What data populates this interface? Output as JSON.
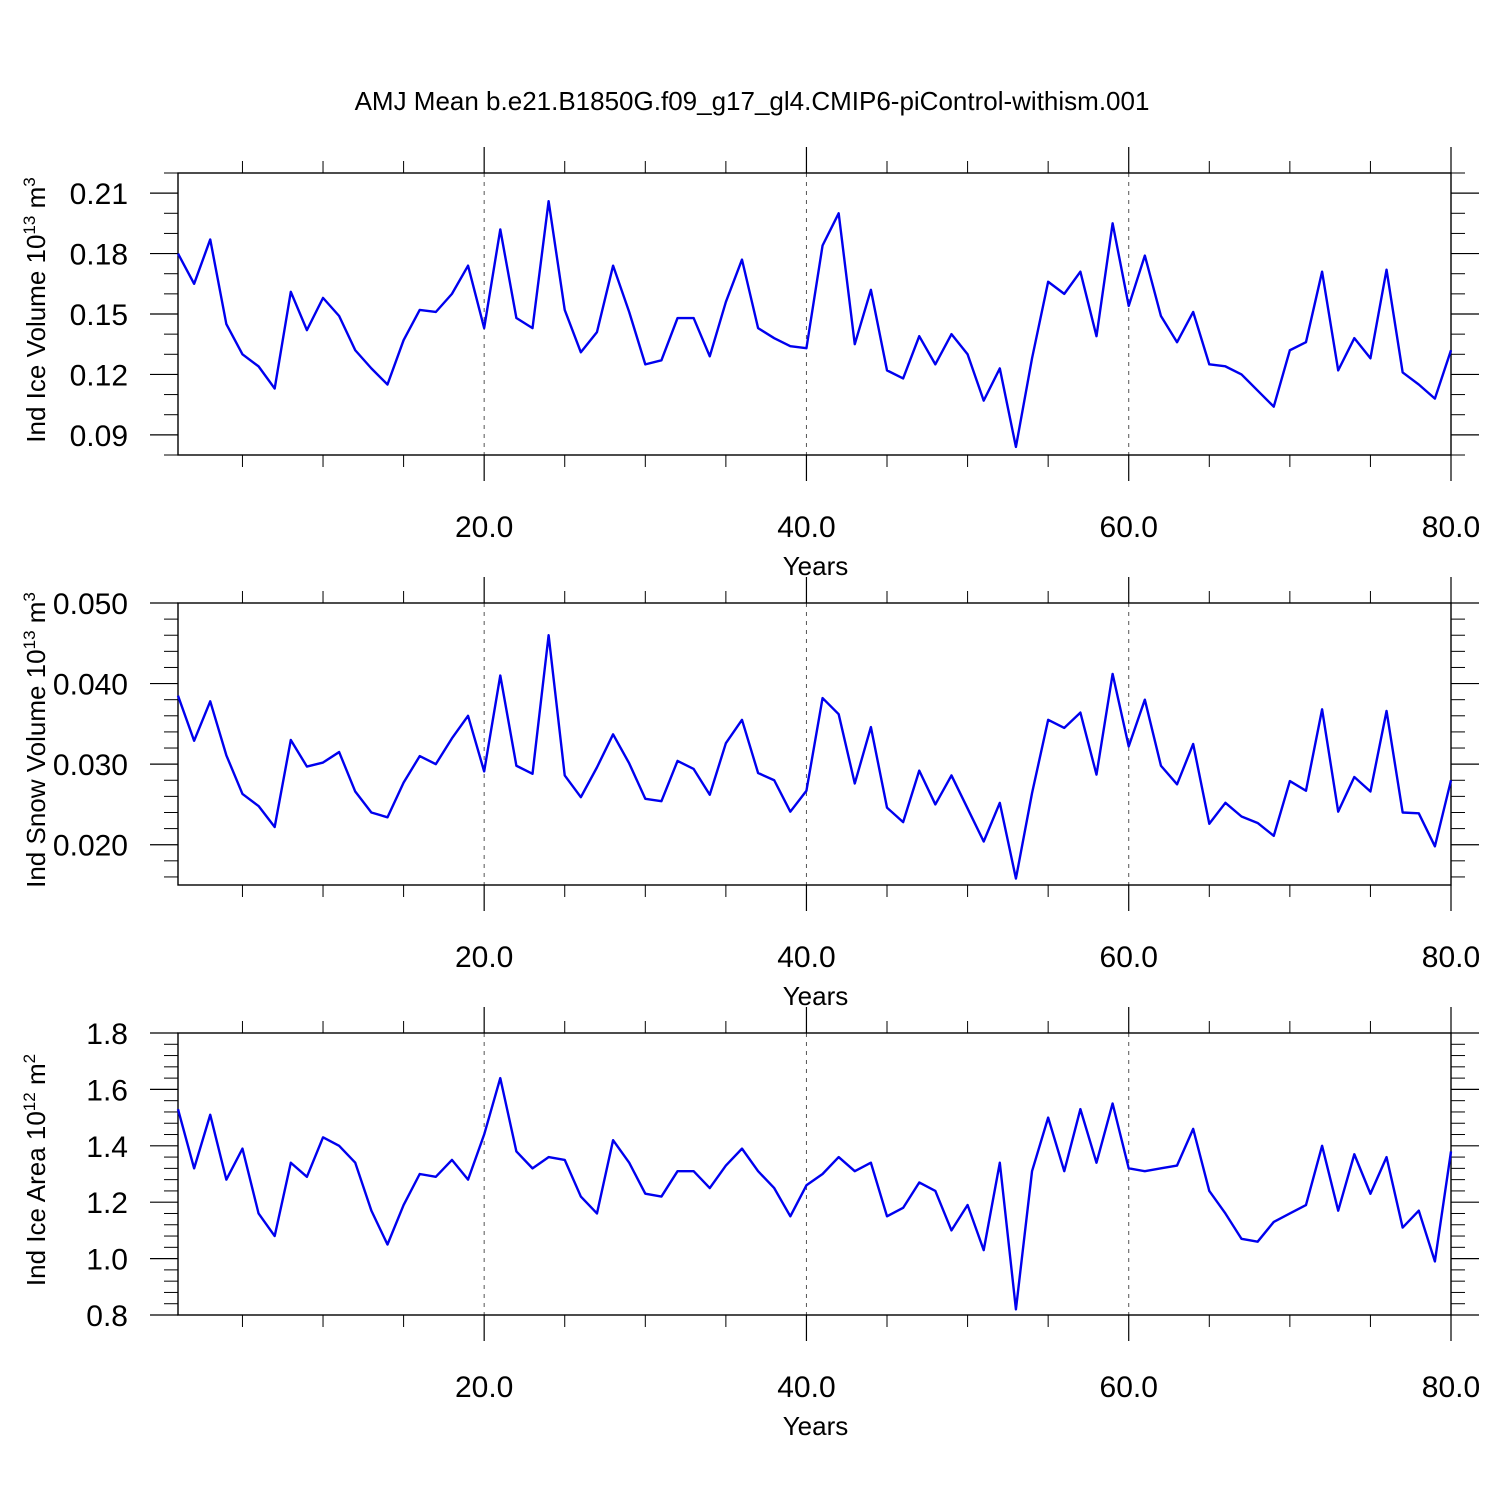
{
  "title": "AMJ Mean b.e21.B1850G.f09_g17_gl4.CMIP6-piControl-withism.001",
  "colors": {
    "series": "#0000ee",
    "grid": "#555555",
    "axis": "#000000"
  },
  "chart_data": [
    {
      "type": "line",
      "ylabel": "Ind Ice Volume 10",
      "ylabel_exp": "13",
      "ylabel_unit": " m",
      "ylabel_unit_exp": "3",
      "xlabel": "Years",
      "xlim": [
        1,
        80
      ],
      "ylim": [
        0.08,
        0.22
      ],
      "y_ticks": [
        0.09,
        0.12,
        0.15,
        0.18,
        0.21
      ],
      "y_tick_labels": [
        "0.09",
        "0.12",
        "0.15",
        "0.18",
        "0.21"
      ],
      "y_minor_step": 0.01,
      "x_ticks": [
        20,
        40,
        60,
        80
      ],
      "x_tick_labels": [
        "20.0",
        "40.0",
        "60.0",
        "80.0"
      ],
      "x_minor_step": 5,
      "grid_x": [
        20,
        40,
        60
      ],
      "x": [
        1,
        2,
        3,
        4,
        5,
        6,
        7,
        8,
        9,
        10,
        11,
        12,
        13,
        14,
        15,
        16,
        17,
        18,
        19,
        20,
        21,
        22,
        23,
        24,
        25,
        26,
        27,
        28,
        29,
        30,
        31,
        32,
        33,
        34,
        35,
        36,
        37,
        38,
        39,
        40,
        41,
        42,
        43,
        44,
        45,
        46,
        47,
        48,
        49,
        50,
        51,
        52,
        53,
        54,
        55,
        56,
        57,
        58,
        59,
        60,
        61,
        62,
        63,
        64,
        65,
        66,
        67,
        68,
        69,
        70,
        71,
        72,
        73,
        74,
        75,
        76,
        77,
        78,
        79,
        80
      ],
      "values": [
        0.18,
        0.165,
        0.187,
        0.145,
        0.13,
        0.124,
        0.113,
        0.161,
        0.142,
        0.158,
        0.149,
        0.132,
        0.123,
        0.115,
        0.137,
        0.152,
        0.151,
        0.16,
        0.174,
        0.143,
        0.192,
        0.148,
        0.143,
        0.206,
        0.152,
        0.131,
        0.141,
        0.174,
        0.151,
        0.125,
        0.127,
        0.148,
        0.148,
        0.129,
        0.156,
        0.177,
        0.143,
        0.138,
        0.134,
        0.133,
        0.184,
        0.2,
        0.135,
        0.162,
        0.122,
        0.118,
        0.139,
        0.125,
        0.14,
        0.13,
        0.107,
        0.123,
        0.084,
        0.128,
        0.166,
        0.16,
        0.171,
        0.139,
        0.195,
        0.154,
        0.179,
        0.149,
        0.136,
        0.151,
        0.125,
        0.124,
        0.12,
        0.112,
        0.104,
        0.132,
        0.136,
        0.171,
        0.122,
        0.138,
        0.128,
        0.172,
        0.121,
        0.115,
        0.108,
        0.132
      ]
    },
    {
      "type": "line",
      "ylabel": "Ind Snow Volume 10",
      "ylabel_exp": "13",
      "ylabel_unit": " m",
      "ylabel_unit_exp": "3",
      "xlabel": "Years",
      "xlim": [
        1,
        80
      ],
      "ylim": [
        0.015,
        0.05
      ],
      "y_ticks": [
        0.02,
        0.03,
        0.04,
        0.05
      ],
      "y_tick_labels": [
        "0.020",
        "0.030",
        "0.040",
        "0.050"
      ],
      "y_minor_step": 0.002,
      "x_ticks": [
        20,
        40,
        60,
        80
      ],
      "x_tick_labels": [
        "20.0",
        "40.0",
        "60.0",
        "80.0"
      ],
      "x_minor_step": 5,
      "grid_x": [
        20,
        40,
        60
      ],
      "x": [
        1,
        2,
        3,
        4,
        5,
        6,
        7,
        8,
        9,
        10,
        11,
        12,
        13,
        14,
        15,
        16,
        17,
        18,
        19,
        20,
        21,
        22,
        23,
        24,
        25,
        26,
        27,
        28,
        29,
        30,
        31,
        32,
        33,
        34,
        35,
        36,
        37,
        38,
        39,
        40,
        41,
        42,
        43,
        44,
        45,
        46,
        47,
        48,
        49,
        50,
        51,
        52,
        53,
        54,
        55,
        56,
        57,
        58,
        59,
        60,
        61,
        62,
        63,
        64,
        65,
        66,
        67,
        68,
        69,
        70,
        71,
        72,
        73,
        74,
        75,
        76,
        77,
        78,
        79,
        80
      ],
      "values": [
        0.0385,
        0.0329,
        0.0378,
        0.0311,
        0.0263,
        0.0248,
        0.0222,
        0.033,
        0.0297,
        0.0302,
        0.0315,
        0.0266,
        0.024,
        0.0234,
        0.0277,
        0.031,
        0.03,
        0.0332,
        0.036,
        0.0291,
        0.041,
        0.0298,
        0.0288,
        0.046,
        0.0286,
        0.0259,
        0.0296,
        0.0337,
        0.0301,
        0.0257,
        0.0254,
        0.0304,
        0.0294,
        0.0262,
        0.0326,
        0.0355,
        0.0289,
        0.028,
        0.0241,
        0.0267,
        0.0382,
        0.0362,
        0.0276,
        0.0346,
        0.0246,
        0.0228,
        0.0292,
        0.025,
        0.0286,
        0.0245,
        0.0204,
        0.0252,
        0.0158,
        0.0264,
        0.0355,
        0.0345,
        0.0364,
        0.0287,
        0.0412,
        0.0322,
        0.038,
        0.0298,
        0.0275,
        0.0325,
        0.0226,
        0.0252,
        0.0235,
        0.0227,
        0.0211,
        0.0279,
        0.0267,
        0.0368,
        0.0241,
        0.0284,
        0.0266,
        0.0366,
        0.024,
        0.0239,
        0.0198,
        0.028
      ]
    },
    {
      "type": "line",
      "ylabel": "Ind Ice Area 10",
      "ylabel_exp": "12",
      "ylabel_unit": " m",
      "ylabel_unit_exp": "2",
      "xlabel": "Years",
      "xlim": [
        1,
        80
      ],
      "ylim": [
        0.8,
        1.8
      ],
      "y_ticks": [
        0.8,
        1.0,
        1.2,
        1.4,
        1.6,
        1.8
      ],
      "y_tick_labels": [
        "0.8",
        "1.0",
        "1.2",
        "1.4",
        "1.6",
        "1.8"
      ],
      "y_minor_step": 0.04,
      "x_ticks": [
        20,
        40,
        60,
        80
      ],
      "x_tick_labels": [
        "20.0",
        "40.0",
        "60.0",
        "80.0"
      ],
      "x_minor_step": 5,
      "grid_x": [
        20,
        40,
        60
      ],
      "x": [
        1,
        2,
        3,
        4,
        5,
        6,
        7,
        8,
        9,
        10,
        11,
        12,
        13,
        14,
        15,
        16,
        17,
        18,
        19,
        20,
        21,
        22,
        23,
        24,
        25,
        26,
        27,
        28,
        29,
        30,
        31,
        32,
        33,
        34,
        35,
        36,
        37,
        38,
        39,
        40,
        41,
        42,
        43,
        44,
        45,
        46,
        47,
        48,
        49,
        50,
        51,
        52,
        53,
        54,
        55,
        56,
        57,
        58,
        59,
        60,
        61,
        62,
        63,
        64,
        65,
        66,
        67,
        68,
        69,
        70,
        71,
        72,
        73,
        74,
        75,
        76,
        77,
        78,
        79,
        80
      ],
      "values": [
        1.53,
        1.32,
        1.51,
        1.28,
        1.39,
        1.16,
        1.08,
        1.34,
        1.29,
        1.43,
        1.4,
        1.34,
        1.17,
        1.05,
        1.19,
        1.3,
        1.29,
        1.35,
        1.28,
        1.44,
        1.64,
        1.38,
        1.32,
        1.36,
        1.35,
        1.22,
        1.16,
        1.42,
        1.34,
        1.23,
        1.22,
        1.31,
        1.31,
        1.25,
        1.33,
        1.39,
        1.31,
        1.25,
        1.15,
        1.26,
        1.3,
        1.36,
        1.31,
        1.34,
        1.15,
        1.18,
        1.27,
        1.24,
        1.1,
        1.19,
        1.03,
        1.34,
        0.82,
        1.31,
        1.5,
        1.31,
        1.53,
        1.34,
        1.55,
        1.32,
        1.31,
        1.32,
        1.33,
        1.46,
        1.24,
        1.16,
        1.07,
        1.06,
        1.13,
        1.16,
        1.19,
        1.4,
        1.17,
        1.37,
        1.23,
        1.36,
        1.11,
        1.17,
        0.99,
        1.38
      ]
    }
  ]
}
